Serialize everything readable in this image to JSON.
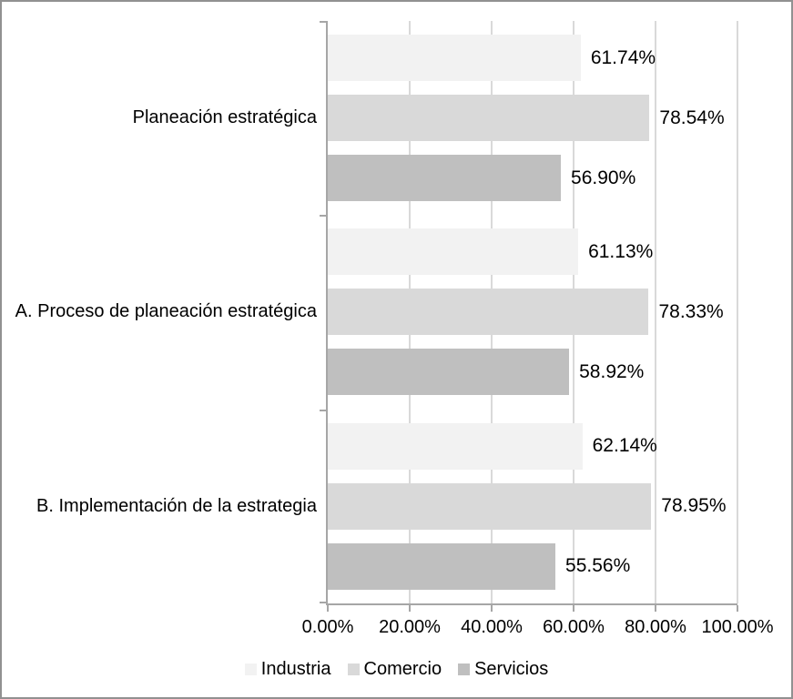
{
  "chart_data": {
    "type": "bar",
    "orientation": "horizontal",
    "title": "",
    "categories": [
      "Planeación estratégica",
      "A. Proceso de planeación estratégica",
      "B. Implementación de la estrategia"
    ],
    "series": [
      {
        "name": "Industria",
        "color": "#f2f2f2",
        "values": [
          61.74,
          61.13,
          62.14
        ],
        "labels": [
          "61.74%",
          "61.13%",
          "62.14%"
        ]
      },
      {
        "name": "Comercio",
        "color": "#d9d9d9",
        "values": [
          78.54,
          78.33,
          78.95
        ],
        "labels": [
          "78.54%",
          "78.33%",
          "78.95%"
        ]
      },
      {
        "name": "Servicios",
        "color": "#bfbfbf",
        "values": [
          56.9,
          58.92,
          55.56
        ],
        "labels": [
          "56.90%",
          "58.92%",
          "55.56%"
        ]
      }
    ],
    "x_axis": {
      "range": [
        0,
        100
      ],
      "tick_values": [
        0,
        20,
        40,
        60,
        80,
        100
      ],
      "tick_labels": [
        "0.00%",
        "20.00%",
        "40.00%",
        "60.00%",
        "80.00%",
        "100.00%"
      ],
      "grid": true
    },
    "legend": {
      "position": "bottom"
    },
    "colors": {
      "axis": "#a6a6a6",
      "gridline": "#d9d9d9",
      "text": "#000000",
      "frame_border": "#919191"
    }
  }
}
